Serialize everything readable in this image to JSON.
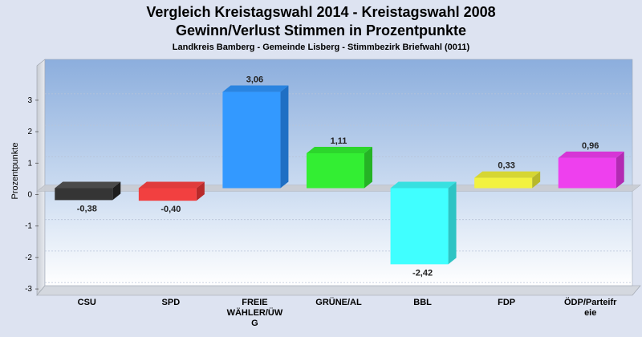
{
  "titles": {
    "line1": "Vergleich Kreistagswahl 2014 - Kreistagswahl 2008",
    "line2": "Gewinn/Verlust Stimmen in Prozentpunkte",
    "subtitle": "Landkreis Bamberg - Gemeinde Lisberg - Stimmbezirk Briefwahl (0011)"
  },
  "chart_data": {
    "type": "bar",
    "title": "Vergleich Kreistagswahl 2014 - Kreistagswahl 2008",
    "subtitle": "Gewinn/Verlust Stimmen in Prozentpunkte",
    "ylabel": "Prozentpunkte",
    "xlabel": "",
    "ylim": [
      -3,
      3.5
    ],
    "yticks": [
      3,
      2,
      1,
      0,
      -1,
      -2,
      -3
    ],
    "grid": true,
    "categories": [
      {
        "label_lines": [
          "CSU"
        ],
        "value": -0.38,
        "value_label": "-0,38",
        "color": "#353535",
        "side": "#1e1e1e",
        "top": "#4a4a4a"
      },
      {
        "label_lines": [
          "SPD"
        ],
        "value": -0.4,
        "value_label": "-0,40",
        "color": "#f24040",
        "side": "#b82a2a",
        "top": "#e03c3c"
      },
      {
        "label_lines": [
          "FREIE",
          "WÄHLER/ÜW",
          "G"
        ],
        "value": 3.06,
        "value_label": "3,06",
        "color": "#3399ff",
        "side": "#1f6fc4",
        "top": "#2a84e0"
      },
      {
        "label_lines": [
          "GRÜNE/AL"
        ],
        "value": 1.11,
        "value_label": "1,11",
        "color": "#33ee33",
        "side": "#25b325",
        "top": "#2cd62c"
      },
      {
        "label_lines": [
          "BBL"
        ],
        "value": -2.42,
        "value_label": "-2,42",
        "color": "#40ffff",
        "side": "#2ec4c4",
        "top": "#38e0e0"
      },
      {
        "label_lines": [
          "FDP"
        ],
        "value": 0.33,
        "value_label": "0,33",
        "color": "#f2f240",
        "side": "#b8b82a",
        "top": "#d6d633"
      },
      {
        "label_lines": [
          "ÖDP/Parteifr",
          "eie"
        ],
        "value": 0.96,
        "value_label": "0,96",
        "color": "#ee40ee",
        "side": "#b32ab3",
        "top": "#d636d6"
      }
    ]
  }
}
